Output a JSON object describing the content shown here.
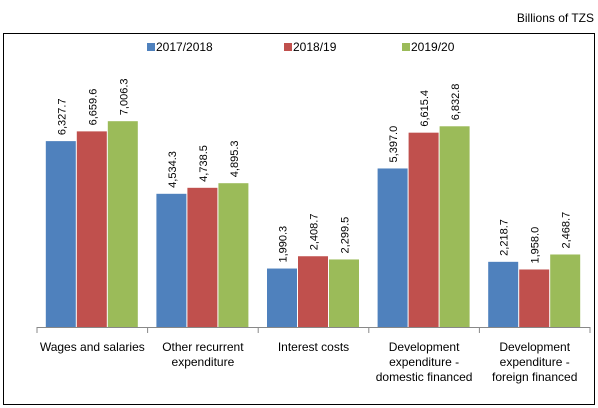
{
  "chart_data": {
    "type": "bar",
    "unit_label": "Billions of TZS",
    "categories": [
      "Wages and salaries",
      "Other recurrent expenditure",
      "Interest costs",
      "Development expenditure - domestic financed",
      "Development expenditure - foreign financed"
    ],
    "series": [
      {
        "name": "2017/2018",
        "color": "#4f81bd",
        "values": [
          6327.7,
          4534.3,
          1990.3,
          5397.0,
          2218.7
        ],
        "value_labels": [
          "6,327.7",
          "4,534.3",
          "1,990.3",
          "5,397.0",
          "2,218.7"
        ]
      },
      {
        "name": "2018/19",
        "color": "#c0504d",
        "values": [
          6659.6,
          4738.5,
          2408.7,
          6615.4,
          1958.0
        ],
        "value_labels": [
          "6,659.6",
          "4,738.5",
          "2,408.7",
          "6,615.4",
          "1,958.0"
        ]
      },
      {
        "name": "2019/20",
        "color": "#9bbb59",
        "values": [
          7006.3,
          4895.3,
          2299.5,
          6832.8,
          2468.7
        ],
        "value_labels": [
          "7,006.3",
          "4,895.3",
          "2,299.5",
          "6,832.8",
          "2,468.7"
        ]
      }
    ],
    "ylim": [
      0,
      8000
    ]
  }
}
